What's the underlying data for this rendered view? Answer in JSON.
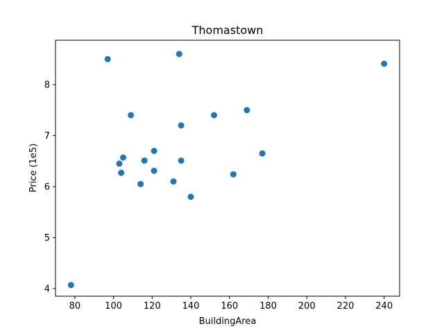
{
  "chart_data": {
    "type": "scatter",
    "title": "Thomastown",
    "xlabel": "BuildingArea",
    "ylabel": "Price (1e5)",
    "xlim": [
      70,
      248
    ],
    "ylim": [
      3.85,
      8.87
    ],
    "xticks": [
      80,
      100,
      120,
      140,
      160,
      180,
      200,
      220,
      240
    ],
    "yticks": [
      4,
      5,
      6,
      7,
      8
    ],
    "grid": false,
    "marker_color": "#1f77b4",
    "points": [
      {
        "x": 78,
        "y": 4.07
      },
      {
        "x": 97,
        "y": 8.5
      },
      {
        "x": 103,
        "y": 6.45
      },
      {
        "x": 104,
        "y": 6.27
      },
      {
        "x": 105,
        "y": 6.57
      },
      {
        "x": 109,
        "y": 7.4
      },
      {
        "x": 114,
        "y": 6.05
      },
      {
        "x": 116,
        "y": 6.51
      },
      {
        "x": 121,
        "y": 6.7
      },
      {
        "x": 121,
        "y": 6.31
      },
      {
        "x": 131,
        "y": 6.1
      },
      {
        "x": 134,
        "y": 8.6
      },
      {
        "x": 135,
        "y": 7.2
      },
      {
        "x": 135,
        "y": 6.51
      },
      {
        "x": 140,
        "y": 5.8
      },
      {
        "x": 152,
        "y": 7.4
      },
      {
        "x": 162,
        "y": 6.24
      },
      {
        "x": 169,
        "y": 7.5
      },
      {
        "x": 177,
        "y": 6.65
      },
      {
        "x": 240,
        "y": 8.41
      }
    ]
  }
}
